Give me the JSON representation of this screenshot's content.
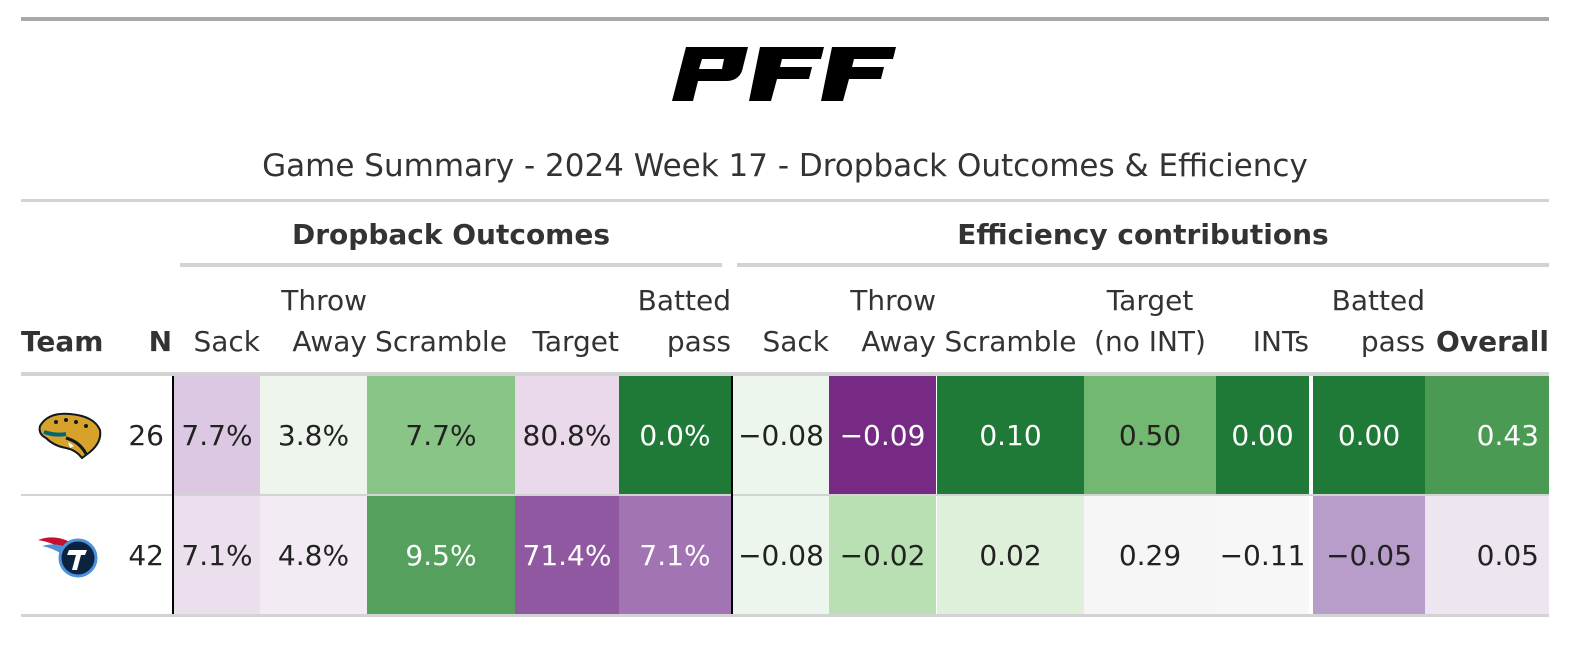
{
  "title": "Game Summary - 2024 Week 17 - Dropback Outcomes & Efficiency",
  "logo_text": "PFF",
  "spanners": [
    {
      "label": "Dropback Outcomes"
    },
    {
      "label": "Efficiency contributions"
    }
  ],
  "columns": [
    {
      "id": "team",
      "label": [
        "Team"
      ],
      "bold": true
    },
    {
      "id": "n",
      "label": [
        "N"
      ],
      "bold": true
    },
    {
      "id": "do_sack",
      "label": [
        "Sack"
      ]
    },
    {
      "id": "do_throwaway",
      "label": [
        "Throw",
        "Away"
      ]
    },
    {
      "id": "do_scramble",
      "label": [
        "Scramble"
      ]
    },
    {
      "id": "do_target",
      "label": [
        "Target"
      ]
    },
    {
      "id": "do_batted",
      "label": [
        "Batted",
        "pass"
      ]
    },
    {
      "id": "ec_sack",
      "label": [
        "Sack"
      ]
    },
    {
      "id": "ec_throwaway",
      "label": [
        "Throw",
        "Away"
      ]
    },
    {
      "id": "ec_scramble",
      "label": [
        "Scramble"
      ]
    },
    {
      "id": "ec_target",
      "label": [
        "Target",
        "(no INT)"
      ]
    },
    {
      "id": "ec_ints",
      "label": [
        "INTs"
      ]
    },
    {
      "id": "ec_batted",
      "label": [
        "Batted",
        "pass"
      ]
    },
    {
      "id": "ec_overall",
      "label": [
        "Overall"
      ],
      "bold": true
    }
  ],
  "chart_data": {
    "type": "table",
    "title": "Game Summary - 2024 Week 17 - Dropback Outcomes & Efficiency",
    "rows": [
      {
        "team": "jaguars-logo-icon",
        "n": "26",
        "values": [
          "7.7%",
          "3.8%",
          "7.7%",
          "80.8%",
          "0.0%",
          "−0.08",
          "−0.09",
          "0.10",
          "0.50",
          "0.00",
          "0.00",
          "0.43"
        ],
        "colors": [
          "#dcc8e2",
          "#eef5ec",
          "#88c587",
          "#ead9ea",
          "#1f7a38",
          "#edf6ec",
          "#762a83",
          "#1f7a38",
          "#73b870",
          "#1f7a38",
          "#1f7a38",
          "#4a9a53"
        ],
        "text_colors": [
          "#222",
          "#222",
          "#222",
          "#222",
          "#ffffff",
          "#222",
          "#ffffff",
          "#ffffff",
          "#222",
          "#ffffff",
          "#ffffff",
          "#ffffff"
        ]
      },
      {
        "team": "titans-logo-icon",
        "n": "42",
        "values": [
          "7.1%",
          "4.8%",
          "9.5%",
          "71.4%",
          "7.1%",
          "−0.08",
          "−0.02",
          "0.02",
          "0.29",
          "−0.11",
          "−0.05",
          "0.05"
        ],
        "colors": [
          "#ebdfee",
          "#f2ebf4",
          "#55a05c",
          "#8f58a0",
          "#a274b4",
          "#edf6ec",
          "#b8e0b2",
          "#def0d9",
          "#f6f6f6",
          "#f7f7f7",
          "#b89dca",
          "#ede5f0"
        ],
        "text_colors": [
          "#222",
          "#222",
          "#ffffff",
          "#ffffff",
          "#ffffff",
          "#222",
          "#222",
          "#222",
          "#222",
          "#222",
          "#222",
          "#222"
        ]
      }
    ]
  }
}
